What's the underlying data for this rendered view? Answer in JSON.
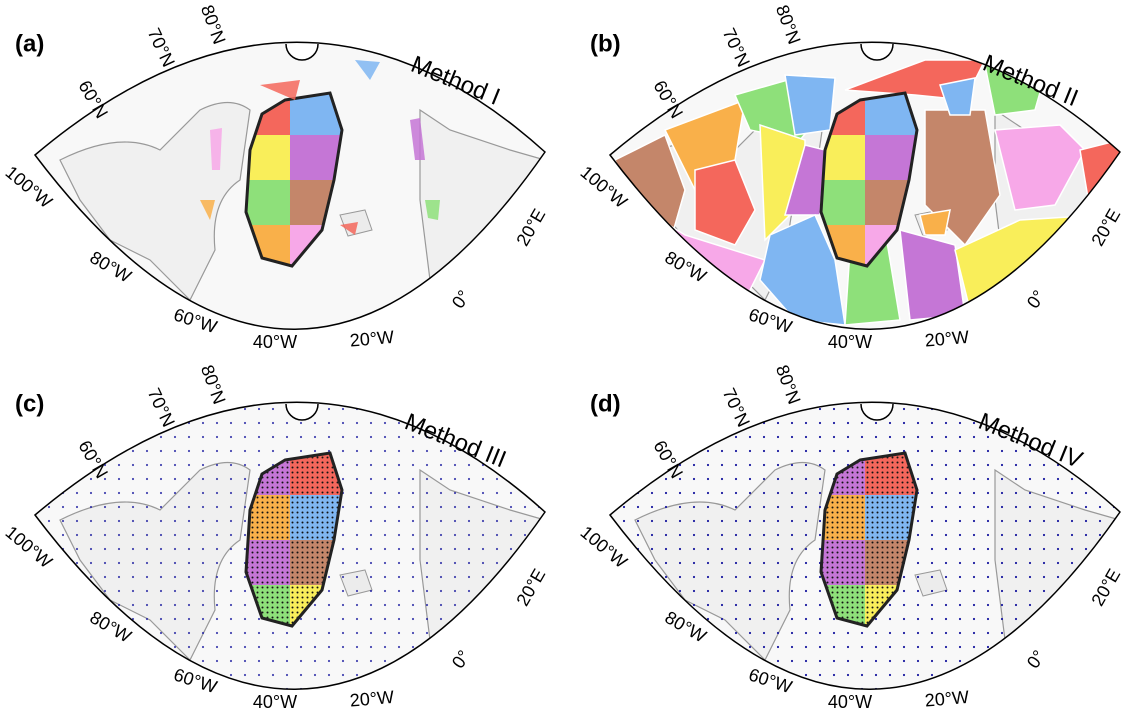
{
  "panels": [
    {
      "label": "(a)",
      "title": "Method I"
    },
    {
      "label": "(b)",
      "title": "Method II"
    },
    {
      "label": "(c)",
      "title": "Method III"
    },
    {
      "label": "(d)",
      "title": "Method IV"
    }
  ],
  "lat_labels": [
    "60°N",
    "70°N",
    "80°N"
  ],
  "lon_labels": [
    "100°W",
    "80°W",
    "60°W",
    "40°W",
    "20°W",
    "0°",
    "20°E"
  ]
}
